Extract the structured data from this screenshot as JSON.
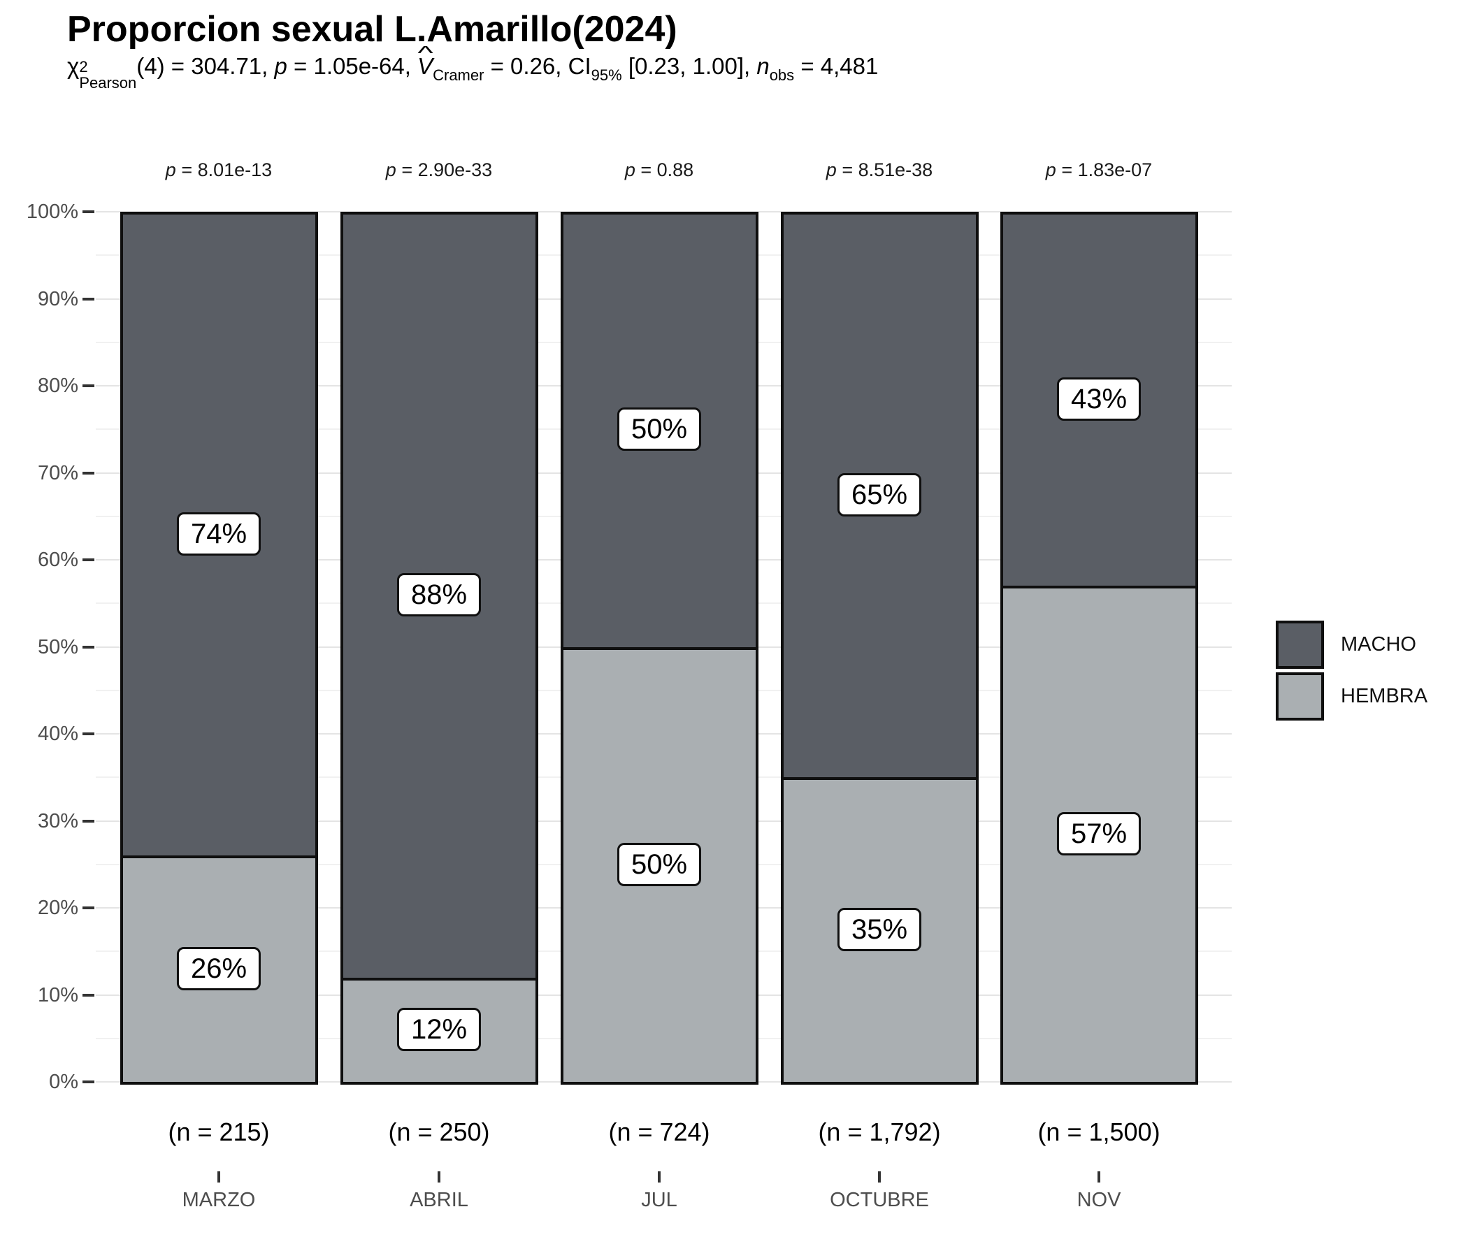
{
  "title": "Proporcion sexual L.Amarillo(2024)",
  "subtitle": {
    "chi": "χ",
    "chi_sup": "2",
    "chi_sub": "Pearson",
    "after_chi": "(4) = 304.71, ",
    "p": "p",
    "after_p": " = 1.05e-64, ",
    "v": "V",
    "v_hat": "^",
    "v_sub": "Cramer",
    "after_v": " = 0.26, ",
    "ci": "CI",
    "ci_sub": "95%",
    "after_ci": " [0.23, 1.00], ",
    "n": "n",
    "n_sub": "obs",
    "after_n": " = 4,481"
  },
  "legend": {
    "items": [
      {
        "label": "MACHO",
        "color": "#5a5e65"
      },
      {
        "label": "HEMBRA",
        "color": "#aaafb2"
      }
    ]
  },
  "y_axis": {
    "tick_labels": [
      "0%",
      "10%",
      "20%",
      "30%",
      "40%",
      "50%",
      "60%",
      "70%",
      "80%",
      "90%",
      "100%"
    ]
  },
  "chart_data": {
    "type": "bar",
    "subtype": "100%-stacked-column",
    "title": "Proporcion sexual L.Amarillo(2024)",
    "subtitle_text": "χ2Pearson(4) = 304.71, p = 1.05e-64, V̂Cramer = 0.26, CI95% [0.23, 1.00], nobs = 4,481",
    "categories": [
      "MARZO",
      "ABRIL",
      "JUL",
      "OCTUBRE",
      "NOV"
    ],
    "series": [
      {
        "name": "MACHO",
        "color": "#5a5e65",
        "values_percent": [
          74,
          88,
          50,
          65,
          43
        ],
        "labels": [
          "74%",
          "88%",
          "50%",
          "65%",
          "43%"
        ]
      },
      {
        "name": "HEMBRA",
        "color": "#aaafb2",
        "values_percent": [
          26,
          12,
          50,
          35,
          57
        ],
        "labels": [
          "26%",
          "12%",
          "50%",
          "35%",
          "57%"
        ]
      }
    ],
    "n_labels": [
      "(n = 215)",
      "(n = 250)",
      "(n = 724)",
      "(n = 1,792)",
      "(n = 1,500)"
    ],
    "p_label_prefix": "p",
    "p_label_joiner": " = ",
    "p_values": [
      "8.01e-13",
      "2.90e-33",
      "0.88",
      "8.51e-38",
      "1.83e-07"
    ],
    "ylim": [
      0,
      100
    ],
    "y_ticks_percent": [
      0,
      10,
      20,
      30,
      40,
      50,
      60,
      70,
      80,
      90,
      100
    ],
    "minor_grid_percent": [
      5,
      15,
      25,
      35,
      45,
      55,
      65,
      75,
      85,
      95
    ],
    "grid": "major 10% + minor 5%",
    "legend_position": "right",
    "bar_fill_legend": {
      "MACHO": "dark-gray",
      "HEMBRA": "light-gray"
    }
  }
}
